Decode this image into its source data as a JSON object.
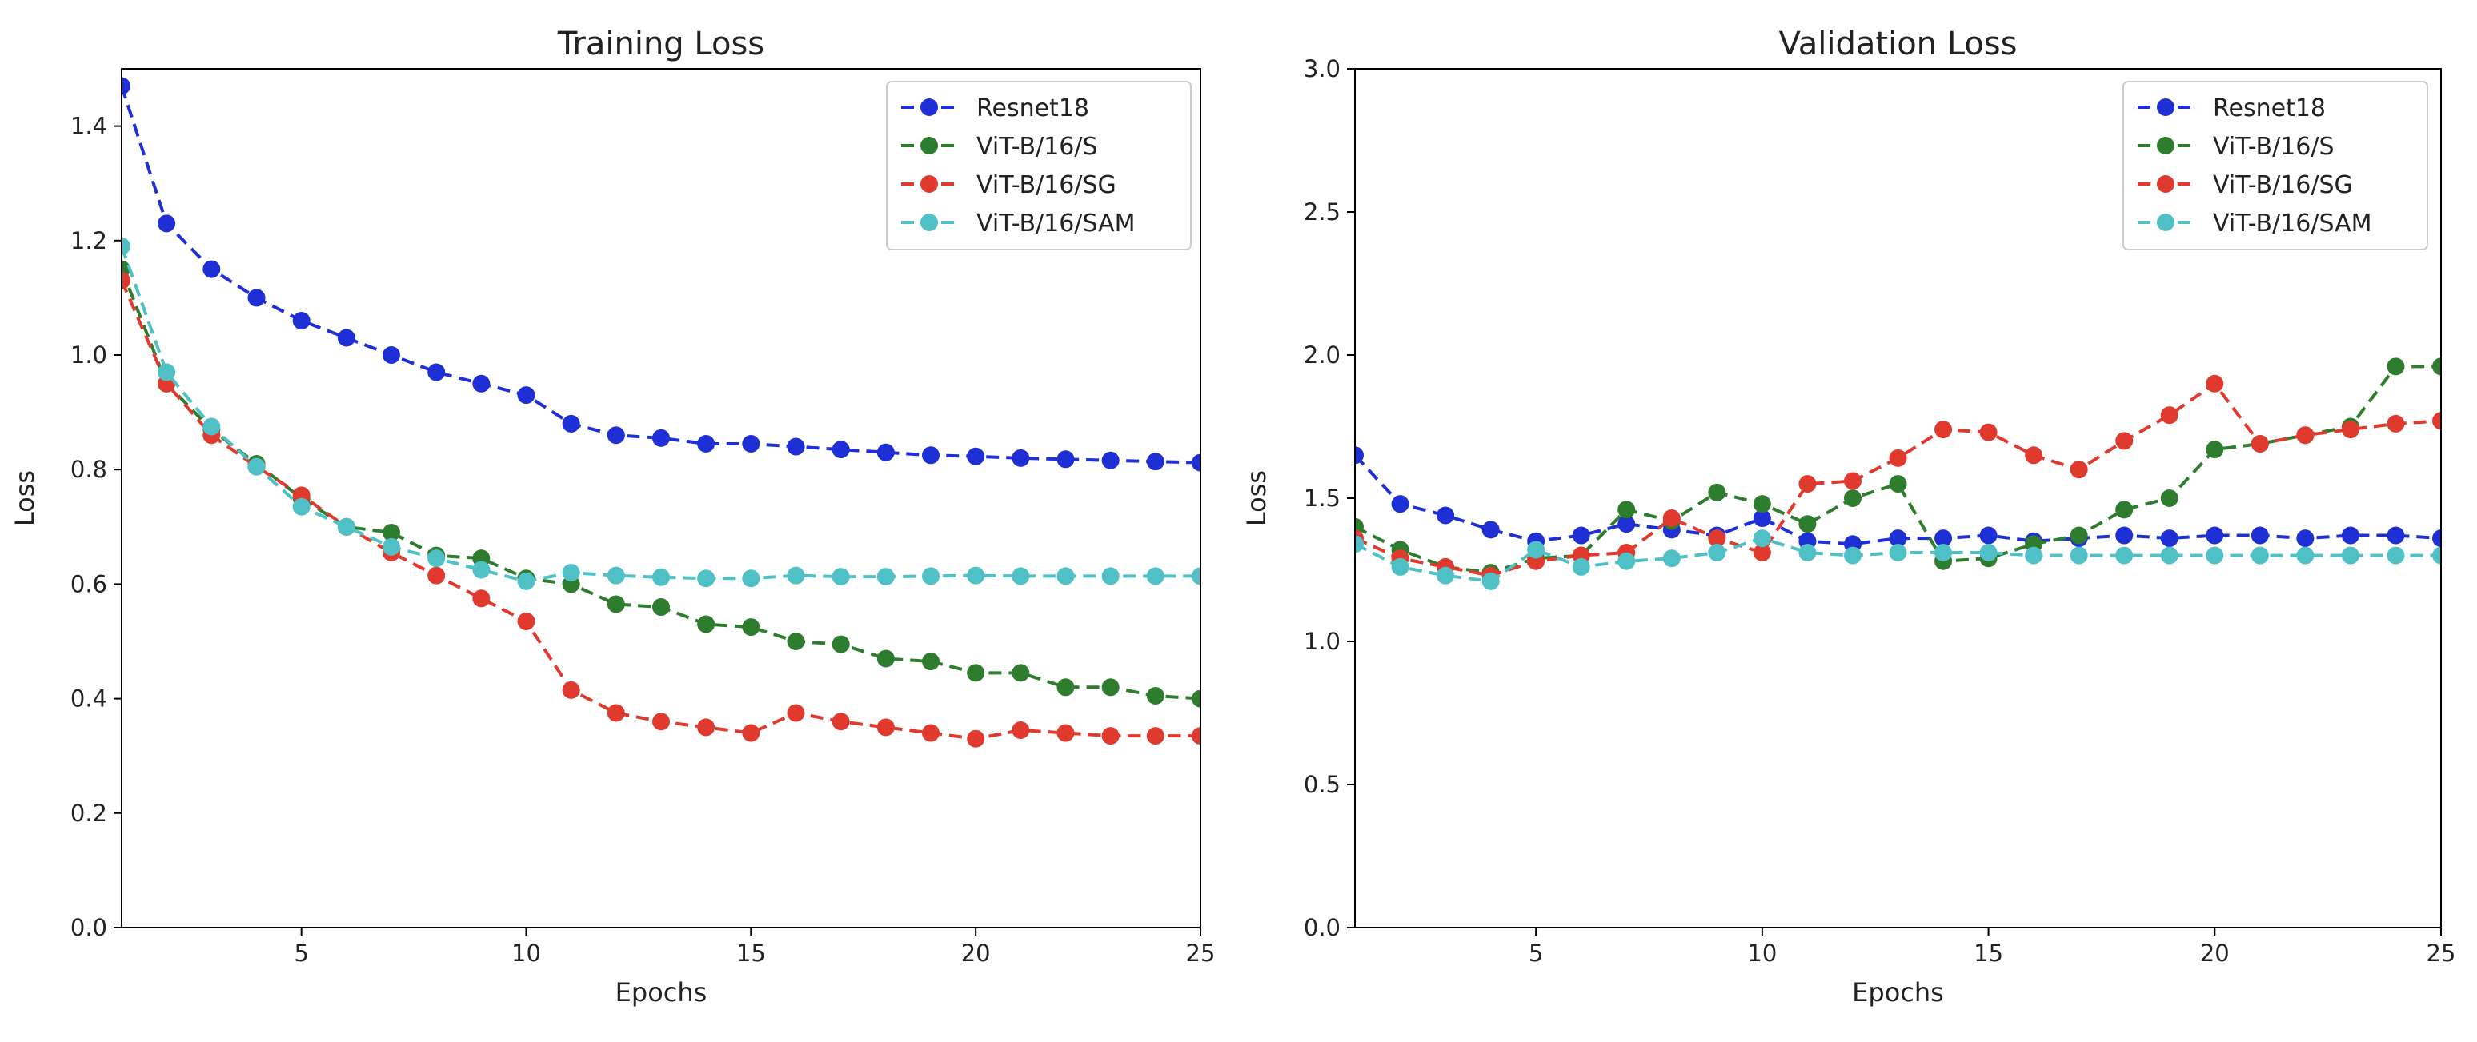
{
  "chart_data": [
    {
      "type": "line",
      "title": "Training Loss",
      "xlabel": "Epochs",
      "ylabel": "Loss",
      "xlim": [
        1,
        25
      ],
      "ylim": [
        0.0,
        1.5
      ],
      "xticks": [
        5,
        10,
        15,
        20,
        25
      ],
      "yticks": [
        "0.0",
        "0.2",
        "0.4",
        "0.6",
        "0.8",
        "1.0",
        "1.2",
        "1.4"
      ],
      "grid": false,
      "legend_position": "top-right",
      "x": [
        1,
        2,
        3,
        4,
        5,
        6,
        7,
        8,
        9,
        10,
        11,
        12,
        13,
        14,
        15,
        16,
        17,
        18,
        19,
        20,
        21,
        22,
        23,
        24,
        25
      ],
      "series": [
        {
          "name": "Resnet18",
          "color": "#1f2fd6",
          "values": [
            1.47,
            1.23,
            1.15,
            1.1,
            1.06,
            1.03,
            1.0,
            0.97,
            0.95,
            0.93,
            0.88,
            0.86,
            0.855,
            0.845,
            0.845,
            0.84,
            0.835,
            0.83,
            0.825,
            0.823,
            0.82,
            0.818,
            0.816,
            0.814,
            0.812
          ]
        },
        {
          "name": "ViT-B/16/S",
          "color": "#2e7d2e",
          "values": [
            1.15,
            0.95,
            0.87,
            0.81,
            0.75,
            0.7,
            0.69,
            0.65,
            0.645,
            0.61,
            0.6,
            0.565,
            0.56,
            0.53,
            0.525,
            0.5,
            0.495,
            0.47,
            0.465,
            0.445,
            0.445,
            0.42,
            0.42,
            0.405,
            0.4
          ]
        },
        {
          "name": "ViT-B/16/SG",
          "color": "#e03a2e",
          "values": [
            1.13,
            0.95,
            0.86,
            0.805,
            0.755,
            0.7,
            0.655,
            0.615,
            0.575,
            0.535,
            0.415,
            0.375,
            0.36,
            0.35,
            0.34,
            0.375,
            0.36,
            0.35,
            0.34,
            0.33,
            0.345,
            0.34,
            0.335,
            0.335,
            0.335
          ]
        },
        {
          "name": "ViT-B/16/SAM",
          "color": "#4fc1c6",
          "values": [
            1.19,
            0.97,
            0.875,
            0.805,
            0.735,
            0.7,
            0.665,
            0.645,
            0.625,
            0.605,
            0.62,
            0.615,
            0.612,
            0.61,
            0.61,
            0.615,
            0.613,
            0.613,
            0.614,
            0.615,
            0.614,
            0.614,
            0.614,
            0.614,
            0.614
          ]
        }
      ]
    },
    {
      "type": "line",
      "title": "Validation Loss",
      "xlabel": "Epochs",
      "ylabel": "Loss",
      "xlim": [
        1,
        25
      ],
      "ylim": [
        0.0,
        3.0
      ],
      "xticks": [
        5,
        10,
        15,
        20,
        25
      ],
      "yticks": [
        "0.0",
        "0.5",
        "1.0",
        "1.5",
        "2.0",
        "2.5",
        "3.0"
      ],
      "grid": false,
      "legend_position": "top-right",
      "x": [
        1,
        2,
        3,
        4,
        5,
        6,
        7,
        8,
        9,
        10,
        11,
        12,
        13,
        14,
        15,
        16,
        17,
        18,
        19,
        20,
        21,
        22,
        23,
        24,
        25
      ],
      "series": [
        {
          "name": "Resnet18",
          "color": "#1f2fd6",
          "values": [
            1.65,
            1.48,
            1.44,
            1.39,
            1.35,
            1.37,
            1.41,
            1.39,
            1.37,
            1.43,
            1.35,
            1.34,
            1.36,
            1.36,
            1.37,
            1.35,
            1.36,
            1.37,
            1.36,
            1.37,
            1.37,
            1.36,
            1.37,
            1.37,
            1.36
          ]
        },
        {
          "name": "ViT-B/16/S",
          "color": "#2e7d2e",
          "values": [
            1.4,
            1.32,
            1.26,
            1.24,
            1.29,
            1.3,
            1.46,
            1.42,
            1.52,
            1.48,
            1.41,
            1.5,
            1.55,
            1.28,
            1.29,
            1.34,
            1.37,
            1.46,
            1.5,
            1.67,
            1.69,
            1.72,
            1.75,
            1.96,
            1.96
          ]
        },
        {
          "name": "ViT-B/16/SG",
          "color": "#e03a2e",
          "values": [
            1.36,
            1.29,
            1.26,
            1.23,
            1.28,
            1.3,
            1.31,
            1.43,
            1.36,
            1.31,
            1.55,
            1.56,
            1.64,
            1.74,
            1.73,
            1.65,
            1.6,
            1.7,
            1.79,
            1.9,
            1.69,
            1.72,
            1.74,
            1.76,
            1.77
          ]
        },
        {
          "name": "ViT-B/16/SAM",
          "color": "#4fc1c6",
          "values": [
            1.34,
            1.26,
            1.23,
            1.21,
            1.32,
            1.26,
            1.28,
            1.29,
            1.31,
            1.36,
            1.31,
            1.3,
            1.31,
            1.31,
            1.31,
            1.3,
            1.3,
            1.3,
            1.3,
            1.3,
            1.3,
            1.3,
            1.3,
            1.3,
            1.3
          ]
        }
      ]
    }
  ]
}
